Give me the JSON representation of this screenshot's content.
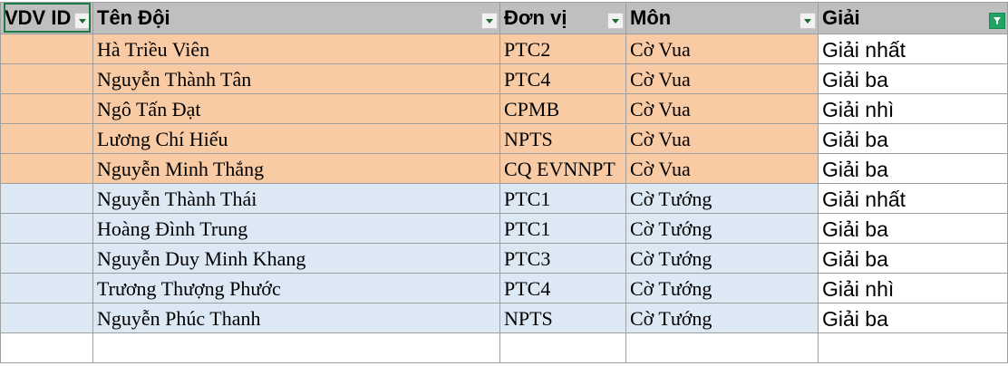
{
  "columns": [
    {
      "label": "VDV ID",
      "filter": "dropdown"
    },
    {
      "label": "Tên Đội",
      "filter": "dropdown"
    },
    {
      "label": "Đơn vị",
      "filter": "dropdown"
    },
    {
      "label": "Môn",
      "filter": "dropdown"
    },
    {
      "label": "Giải",
      "filter": "filtered"
    }
  ],
  "rows": [
    {
      "id": "",
      "name": "Hà Triều Viên",
      "unit": "PTC2",
      "mon": "Cờ Vua",
      "giai": "Giải nhất",
      "color": "#f8cba5"
    },
    {
      "id": "",
      "name": "Nguyễn Thành Tân",
      "unit": "PTC4",
      "mon": "Cờ Vua",
      "giai": "Giải ba",
      "color": "#f8cba5"
    },
    {
      "id": "",
      "name": "Ngô Tấn Đạt",
      "unit": "CPMB",
      "mon": "Cờ Vua",
      "giai": "Giải nhì",
      "color": "#f8cba5"
    },
    {
      "id": "",
      "name": "Lương Chí Hiếu",
      "unit": "NPTS",
      "mon": "Cờ Vua",
      "giai": "Giải ba",
      "color": "#f8cba5"
    },
    {
      "id": "",
      "name": "Nguyễn Minh Thắng",
      "unit": "CQ EVNNPT",
      "mon": "Cờ Vua",
      "giai": "Giải ba",
      "color": "#f8cba5"
    },
    {
      "id": "",
      "name": "Nguyễn Thành Thái",
      "unit": "PTC1",
      "mon": "Cờ Tướng",
      "giai": "Giải nhất",
      "color": "#dce9f5"
    },
    {
      "id": "",
      "name": "Hoàng Đình Trung",
      "unit": "PTC1",
      "mon": "Cờ Tướng",
      "giai": "Giải ba",
      "color": "#dce9f5"
    },
    {
      "id": "",
      "name": "Nguyễn Duy Minh Khang",
      "unit": "PTC3",
      "mon": "Cờ Tướng",
      "giai": "Giải ba",
      "color": "#dce9f5"
    },
    {
      "id": "",
      "name": "Trương Thượng Phước",
      "unit": "PTC4",
      "mon": "Cờ Tướng",
      "giai": "Giải nhì",
      "color": "#dce9f5"
    },
    {
      "id": "",
      "name": "Nguyễn Phúc Thanh",
      "unit": "NPTS",
      "mon": "Cờ Tướng",
      "giai": "Giải ba",
      "color": "#dce9f5"
    }
  ],
  "colors": {
    "header_bg": "#bfbfbf",
    "co_vua_fill": "#f8cba5",
    "co_tuong_fill": "#dce9f5",
    "active_filter": "#21a366",
    "selection_border": "#1f7a4a"
  },
  "icons": {
    "dropdown": "filter-dropdown-icon",
    "filtered": "filter-applied-icon"
  }
}
